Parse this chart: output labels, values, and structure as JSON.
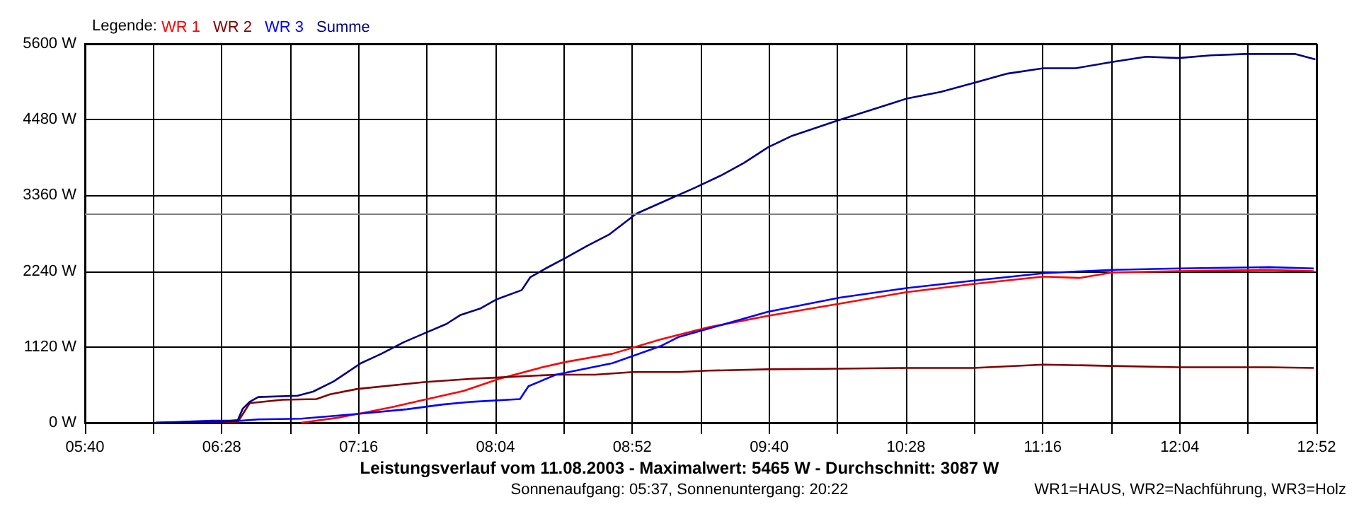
{
  "chart_data": {
    "type": "line",
    "title": "Leistungsverlauf vom 11.08.2003 - Maximalwert: 5465 W - Durchschnitt: 3087 W",
    "subtitle": "Sonnenaufgang: 05:37, Sonnenuntergang: 20:22",
    "legend_title": "Legende:",
    "annotations": [
      "WR1=HAUS, WR2=Nachführung, WR3=Holz"
    ],
    "xlim": [
      5.6667,
      12.8667
    ],
    "xticks": [
      {
        "value": 5.6667,
        "label": "05:40"
      },
      {
        "value": 6.0667,
        "label": null
      },
      {
        "value": 6.4667,
        "label": "06:28"
      },
      {
        "value": 6.8667,
        "label": null
      },
      {
        "value": 7.2667,
        "label": "07:16"
      },
      {
        "value": 7.6667,
        "label": null
      },
      {
        "value": 8.0667,
        "label": "08:04"
      },
      {
        "value": 8.4667,
        "label": null
      },
      {
        "value": 8.8667,
        "label": "08:52"
      },
      {
        "value": 9.2667,
        "label": null
      },
      {
        "value": 9.6667,
        "label": "09:40"
      },
      {
        "value": 10.0667,
        "label": null
      },
      {
        "value": 10.4667,
        "label": "10:28"
      },
      {
        "value": 10.8667,
        "label": null
      },
      {
        "value": 11.2667,
        "label": "11:16"
      },
      {
        "value": 11.6667,
        "label": null
      },
      {
        "value": 12.0667,
        "label": "12:04"
      },
      {
        "value": 12.4667,
        "label": null
      },
      {
        "value": 12.8667,
        "label": "12:52"
      }
    ],
    "ylim": [
      0,
      5600
    ],
    "yticks": [
      {
        "value": 0,
        "label": "0 W"
      },
      {
        "value": 1120,
        "label": "1120 W"
      },
      {
        "value": 2240,
        "label": "2240 W"
      },
      {
        "value": 3360,
        "label": "3360 W"
      },
      {
        "value": 4480,
        "label": "4480 W"
      },
      {
        "value": 5600,
        "label": "5600 W"
      }
    ],
    "grid": true,
    "legend": "top left",
    "marker": "none",
    "ref_lines": [
      {
        "axis": "y",
        "value": 3087,
        "color": "#808080"
      }
    ],
    "series": [
      {
        "name": "WR 1",
        "color": "#ff0000",
        "x": [
          6.93,
          7.16,
          7.26,
          7.46,
          7.65,
          7.88,
          8.09,
          8.34,
          8.48,
          8.75,
          9.03,
          9.31,
          9.66,
          10.08,
          10.47,
          10.86,
          11.27,
          11.48,
          11.67,
          12.06,
          12.59,
          12.85
        ],
        "values": [
          0,
          80,
          130,
          230,
          340,
          470,
          650,
          820,
          900,
          1020,
          1230,
          1410,
          1580,
          1760,
          1930,
          2050,
          2160,
          2140,
          2220,
          2240,
          2260,
          2240
        ]
      },
      {
        "name": "WR 2",
        "color": "#800000",
        "x": [
          6.08,
          6.56,
          6.63,
          6.82,
          7.02,
          7.1,
          7.26,
          7.65,
          7.93,
          8.09,
          8.42,
          8.65,
          8.87,
          9.14,
          9.31,
          9.66,
          10.08,
          10.47,
          10.86,
          11.27,
          11.67,
          12.06,
          12.59,
          12.85
        ],
        "values": [
          0,
          10,
          290,
          340,
          350,
          420,
          500,
          600,
          650,
          670,
          710,
          710,
          750,
          750,
          770,
          790,
          800,
          810,
          810,
          860,
          840,
          820,
          820,
          810
        ]
      },
      {
        "name": "WR 3",
        "color": "#0000ff",
        "x": [
          6.08,
          6.41,
          6.58,
          6.68,
          6.93,
          7.26,
          7.55,
          7.76,
          7.93,
          8.21,
          8.26,
          8.42,
          8.75,
          9.03,
          9.14,
          9.31,
          9.66,
          10.08,
          10.47,
          10.86,
          11.27,
          11.67,
          12.06,
          12.59,
          12.85
        ],
        "values": [
          0,
          30,
          30,
          50,
          60,
          130,
          200,
          270,
          310,
          350,
          540,
          710,
          880,
          1130,
          1270,
          1390,
          1640,
          1850,
          1990,
          2100,
          2210,
          2260,
          2280,
          2300,
          2280
        ]
      },
      {
        "name": "Summe",
        "color": "#000080",
        "x": [
          6.08,
          6.48,
          6.56,
          6.59,
          6.63,
          6.68,
          6.91,
          7.0,
          7.12,
          7.28,
          7.4,
          7.53,
          7.65,
          7.78,
          7.86,
          7.98,
          8.07,
          8.22,
          8.27,
          8.36,
          8.48,
          8.6,
          8.73,
          8.89,
          9.06,
          9.23,
          9.39,
          9.52,
          9.66,
          9.8,
          10.07,
          10.26,
          10.47,
          10.67,
          10.86,
          11.06,
          11.27,
          11.46,
          11.67,
          11.87,
          12.06,
          12.25,
          12.45,
          12.62,
          12.74,
          12.86
        ],
        "values": [
          0,
          20,
          40,
          210,
          310,
          380,
          400,
          460,
          610,
          880,
          1020,
          1190,
          1320,
          1460,
          1590,
          1690,
          1820,
          1960,
          2150,
          2280,
          2440,
          2610,
          2780,
          3090,
          3280,
          3470,
          3660,
          3840,
          4070,
          4240,
          4470,
          4620,
          4790,
          4890,
          5020,
          5160,
          5240,
          5240,
          5330,
          5410,
          5390,
          5430,
          5450,
          5450,
          5450,
          5370
        ]
      }
    ]
  }
}
